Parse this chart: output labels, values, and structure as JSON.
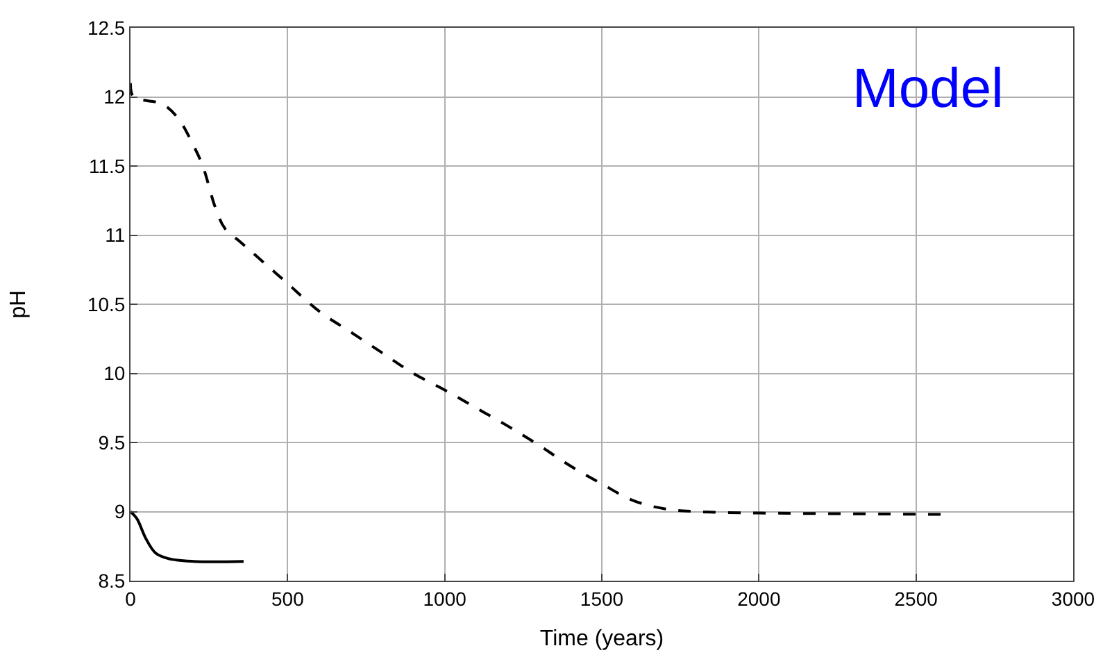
{
  "chart_data": {
    "type": "line",
    "xlabel": "Time (years)",
    "ylabel": "pH",
    "annotations": [
      "Model"
    ],
    "xlim": [
      0,
      3000
    ],
    "xticks": [
      0,
      500,
      1000,
      1500,
      2000,
      2500,
      3000
    ],
    "ylim": [
      8.5,
      12.5
    ],
    "yticks": [
      8.5,
      9,
      9.5,
      10,
      10.5,
      11,
      11.5,
      12,
      12.5
    ],
    "grid": true,
    "legend": false,
    "marker": "none",
    "series": [
      {
        "color": "#000000",
        "line_style": "dashed",
        "x": [
          0,
          10,
          100,
          150,
          200,
          230,
          270,
          300,
          350,
          400,
          500,
          600,
          700,
          800,
          900,
          1000,
          1100,
          1200,
          1300,
          1400,
          1500,
          1600,
          1700,
          1800,
          2000,
          2580
        ],
        "values": [
          12.1,
          12.0,
          11.95,
          11.85,
          11.65,
          11.5,
          11.2,
          11.05,
          10.95,
          10.85,
          10.65,
          10.45,
          10.3,
          10.15,
          10.0,
          9.88,
          9.75,
          9.62,
          9.48,
          9.33,
          9.2,
          9.08,
          9.02,
          9.0,
          8.99,
          8.98
        ]
      },
      {
        "color": "#000000",
        "line_style": "solid",
        "x": [
          0,
          20,
          50,
          80,
          120,
          200,
          360
        ],
        "values": [
          9.0,
          8.95,
          8.8,
          8.7,
          8.66,
          8.64,
          8.64
        ]
      }
    ]
  }
}
